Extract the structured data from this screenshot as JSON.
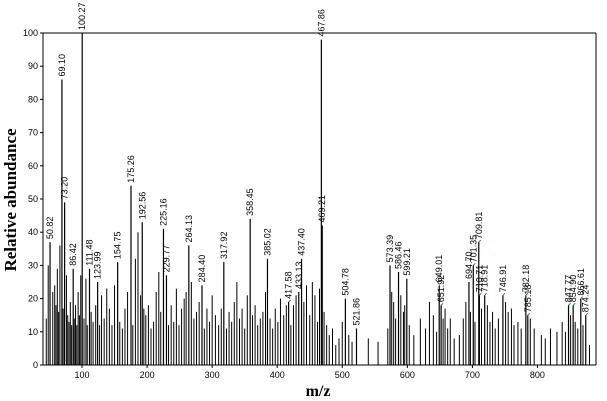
{
  "chart_data": {
    "type": "bar",
    "xlabel": "m/z",
    "ylabel": "Relative abundance",
    "xlim": [
      40,
      890
    ],
    "ylim": [
      0,
      100
    ],
    "xticks": [
      100,
      200,
      300,
      400,
      500,
      600,
      700,
      800
    ],
    "yticks": [
      0,
      10,
      20,
      30,
      40,
      50,
      60,
      70,
      80,
      90,
      100
    ],
    "grid": false,
    "colors": {
      "bars": "#000000",
      "axes": "#000000",
      "connector": "#2e8b2e"
    },
    "labeled_peaks": [
      {
        "label": "50.82",
        "x": 50.82,
        "y": 37
      },
      {
        "label": "69.10",
        "x": 69.1,
        "y": 86
      },
      {
        "label": "73.20",
        "x": 73.2,
        "y": 49
      },
      {
        "label": "86.42",
        "x": 86.42,
        "y": 29
      },
      {
        "label": "100.27",
        "x": 100.27,
        "y": 100
      },
      {
        "label": "111.48",
        "x": 111.48,
        "y": 29
      },
      {
        "label": "123.99",
        "x": 123.99,
        "y": 25
      },
      {
        "label": "154.75",
        "x": 154.75,
        "y": 31
      },
      {
        "label": "175.26",
        "x": 175.26,
        "y": 54
      },
      {
        "label": "192.56",
        "x": 192.56,
        "y": 43
      },
      {
        "label": "225.16",
        "x": 225.16,
        "y": 41
      },
      {
        "label": "229.77",
        "x": 229.77,
        "y": 27
      },
      {
        "label": "264.13",
        "x": 264.13,
        "y": 36
      },
      {
        "label": "284.40",
        "x": 284.4,
        "y": 24
      },
      {
        "label": "317.92",
        "x": 317.92,
        "y": 31
      },
      {
        "label": "358.45",
        "x": 358.45,
        "y": 44
      },
      {
        "label": "385.02",
        "x": 385.02,
        "y": 32
      },
      {
        "label": "417.58",
        "x": 417.58,
        "y": 19
      },
      {
        "label": "433.13",
        "x": 433.13,
        "y": 22
      },
      {
        "label": "437.40",
        "x": 437.4,
        "y": 32
      },
      {
        "label": "467.86",
        "x": 467.86,
        "y": 98
      },
      {
        "label": "469.21",
        "x": 469.21,
        "y": 42
      },
      {
        "label": "504.78",
        "x": 504.78,
        "y": 20
      },
      {
        "label": "521.86",
        "x": 521.86,
        "y": 11
      },
      {
        "label": "573.39",
        "x": 573.39,
        "y": 30
      },
      {
        "label": "586.46",
        "x": 586.46,
        "y": 28
      },
      {
        "label": "599.21",
        "x": 599.21,
        "y": 26
      },
      {
        "label": "649.01",
        "x": 649.01,
        "y": 24
      },
      {
        "label": "651.92",
        "x": 651.92,
        "y": 18
      },
      {
        "label": "694.70",
        "x": 694.7,
        "y": 25
      },
      {
        "label": "701.35",
        "x": 701.35,
        "y": 30
      },
      {
        "label": "709.81",
        "x": 709.81,
        "y": 37
      },
      {
        "label": "710.71",
        "x": 710.71,
        "y": 21
      },
      {
        "label": "718.91",
        "x": 718.91,
        "y": 21
      },
      {
        "label": "746.91",
        "x": 746.91,
        "y": 21
      },
      {
        "label": "782.18",
        "x": 782.18,
        "y": 21
      },
      {
        "label": "785.18",
        "x": 785.18,
        "y": 15
      },
      {
        "label": "847.77",
        "x": 847.77,
        "y": 18
      },
      {
        "label": "854.90",
        "x": 854.9,
        "y": 18
      },
      {
        "label": "866.61",
        "x": 866.61,
        "y": 20
      },
      {
        "label": "874.24",
        "x": 874.24,
        "y": 15
      }
    ],
    "unlabeled_peaks": [
      {
        "x": 45,
        "y": 14
      },
      {
        "x": 48,
        "y": 30
      },
      {
        "x": 55,
        "y": 22
      },
      {
        "x": 58,
        "y": 24
      },
      {
        "x": 60,
        "y": 18
      },
      {
        "x": 62,
        "y": 29
      },
      {
        "x": 64,
        "y": 16
      },
      {
        "x": 66,
        "y": 36
      },
      {
        "x": 71,
        "y": 17
      },
      {
        "x": 76,
        "y": 27
      },
      {
        "x": 78,
        "y": 15
      },
      {
        "x": 80,
        "y": 13
      },
      {
        "x": 82,
        "y": 19
      },
      {
        "x": 84,
        "y": 12
      },
      {
        "x": 88,
        "y": 14
      },
      {
        "x": 90,
        "y": 18
      },
      {
        "x": 92,
        "y": 12
      },
      {
        "x": 94,
        "y": 22
      },
      {
        "x": 96,
        "y": 15
      },
      {
        "x": 98,
        "y": 27
      },
      {
        "x": 103,
        "y": 14
      },
      {
        "x": 106,
        "y": 26
      },
      {
        "x": 108,
        "y": 12
      },
      {
        "x": 114,
        "y": 16
      },
      {
        "x": 117,
        "y": 13
      },
      {
        "x": 121,
        "y": 18
      },
      {
        "x": 127,
        "y": 12
      },
      {
        "x": 130,
        "y": 21
      },
      {
        "x": 134,
        "y": 14
      },
      {
        "x": 138,
        "y": 23
      },
      {
        "x": 142,
        "y": 17
      },
      {
        "x": 146,
        "y": 12
      },
      {
        "x": 150,
        "y": 24
      },
      {
        "x": 158,
        "y": 13
      },
      {
        "x": 162,
        "y": 11
      },
      {
        "x": 166,
        "y": 17
      },
      {
        "x": 170,
        "y": 22
      },
      {
        "x": 178,
        "y": 12
      },
      {
        "x": 182,
        "y": 32
      },
      {
        "x": 186,
        "y": 40
      },
      {
        "x": 190,
        "y": 21
      },
      {
        "x": 195,
        "y": 17
      },
      {
        "x": 198,
        "y": 15
      },
      {
        "x": 202,
        "y": 18
      },
      {
        "x": 206,
        "y": 11
      },
      {
        "x": 210,
        "y": 13
      },
      {
        "x": 214,
        "y": 22
      },
      {
        "x": 218,
        "y": 28
      },
      {
        "x": 221,
        "y": 16
      },
      {
        "x": 233,
        "y": 12
      },
      {
        "x": 237,
        "y": 18
      },
      {
        "x": 241,
        "y": 13
      },
      {
        "x": 245,
        "y": 23
      },
      {
        "x": 249,
        "y": 12
      },
      {
        "x": 253,
        "y": 17
      },
      {
        "x": 257,
        "y": 20
      },
      {
        "x": 260,
        "y": 22
      },
      {
        "x": 268,
        "y": 25
      },
      {
        "x": 272,
        "y": 14
      },
      {
        "x": 276,
        "y": 16
      },
      {
        "x": 280,
        "y": 19
      },
      {
        "x": 288,
        "y": 11
      },
      {
        "x": 292,
        "y": 17
      },
      {
        "x": 296,
        "y": 13
      },
      {
        "x": 300,
        "y": 21
      },
      {
        "x": 305,
        "y": 15
      },
      {
        "x": 310,
        "y": 12
      },
      {
        "x": 314,
        "y": 17
      },
      {
        "x": 322,
        "y": 11
      },
      {
        "x": 326,
        "y": 16
      },
      {
        "x": 330,
        "y": 13
      },
      {
        "x": 334,
        "y": 19
      },
      {
        "x": 338,
        "y": 25
      },
      {
        "x": 342,
        "y": 14
      },
      {
        "x": 346,
        "y": 17
      },
      {
        "x": 350,
        "y": 11
      },
      {
        "x": 354,
        "y": 21
      },
      {
        "x": 362,
        "y": 15
      },
      {
        "x": 366,
        "y": 18
      },
      {
        "x": 370,
        "y": 12
      },
      {
        "x": 374,
        "y": 14
      },
      {
        "x": 378,
        "y": 16
      },
      {
        "x": 382,
        "y": 22
      },
      {
        "x": 389,
        "y": 14
      },
      {
        "x": 393,
        "y": 11
      },
      {
        "x": 397,
        "y": 17
      },
      {
        "x": 401,
        "y": 13
      },
      {
        "x": 405,
        "y": 20
      },
      {
        "x": 410,
        "y": 15
      },
      {
        "x": 414,
        "y": 18
      },
      {
        "x": 421,
        "y": 12
      },
      {
        "x": 425,
        "y": 18
      },
      {
        "x": 429,
        "y": 21
      },
      {
        "x": 441,
        "y": 19
      },
      {
        "x": 445,
        "y": 24
      },
      {
        "x": 450,
        "y": 15
      },
      {
        "x": 454,
        "y": 25
      },
      {
        "x": 458,
        "y": 21
      },
      {
        "x": 462,
        "y": 13
      },
      {
        "x": 465,
        "y": 23
      },
      {
        "x": 472,
        "y": 16
      },
      {
        "x": 476,
        "y": 12
      },
      {
        "x": 480,
        "y": 9
      },
      {
        "x": 485,
        "y": 11
      },
      {
        "x": 490,
        "y": 6
      },
      {
        "x": 495,
        "y": 8
      },
      {
        "x": 500,
        "y": 13
      },
      {
        "x": 510,
        "y": 9
      },
      {
        "x": 515,
        "y": 7
      },
      {
        "x": 540,
        "y": 8
      },
      {
        "x": 555,
        "y": 7
      },
      {
        "x": 570,
        "y": 11
      },
      {
        "x": 576,
        "y": 22
      },
      {
        "x": 579,
        "y": 19
      },
      {
        "x": 582,
        "y": 14
      },
      {
        "x": 590,
        "y": 21
      },
      {
        "x": 594,
        "y": 16
      },
      {
        "x": 596,
        "y": 18
      },
      {
        "x": 603,
        "y": 12
      },
      {
        "x": 610,
        "y": 9
      },
      {
        "x": 620,
        "y": 14
      },
      {
        "x": 628,
        "y": 11
      },
      {
        "x": 634,
        "y": 19
      },
      {
        "x": 640,
        "y": 15
      },
      {
        "x": 645,
        "y": 10
      },
      {
        "x": 655,
        "y": 14
      },
      {
        "x": 658,
        "y": 17
      },
      {
        "x": 662,
        "y": 11
      },
      {
        "x": 666,
        "y": 14
      },
      {
        "x": 672,
        "y": 8
      },
      {
        "x": 680,
        "y": 9
      },
      {
        "x": 686,
        "y": 14
      },
      {
        "x": 690,
        "y": 19
      },
      {
        "x": 697,
        "y": 16
      },
      {
        "x": 704,
        "y": 13
      },
      {
        "x": 714,
        "y": 17
      },
      {
        "x": 723,
        "y": 18
      },
      {
        "x": 727,
        "y": 13
      },
      {
        "x": 731,
        "y": 16
      },
      {
        "x": 735,
        "y": 11
      },
      {
        "x": 740,
        "y": 14
      },
      {
        "x": 751,
        "y": 19
      },
      {
        "x": 755,
        "y": 16
      },
      {
        "x": 760,
        "y": 17
      },
      {
        "x": 764,
        "y": 12
      },
      {
        "x": 770,
        "y": 13
      },
      {
        "x": 775,
        "y": 11
      },
      {
        "x": 789,
        "y": 14
      },
      {
        "x": 795,
        "y": 11
      },
      {
        "x": 806,
        "y": 9
      },
      {
        "x": 812,
        "y": 8
      },
      {
        "x": 820,
        "y": 11
      },
      {
        "x": 830,
        "y": 10
      },
      {
        "x": 838,
        "y": 13
      },
      {
        "x": 843,
        "y": 10
      },
      {
        "x": 851,
        "y": 15
      },
      {
        "x": 858,
        "y": 13
      },
      {
        "x": 862,
        "y": 11
      },
      {
        "x": 870,
        "y": 12
      },
      {
        "x": 880,
        "y": 6
      }
    ]
  }
}
